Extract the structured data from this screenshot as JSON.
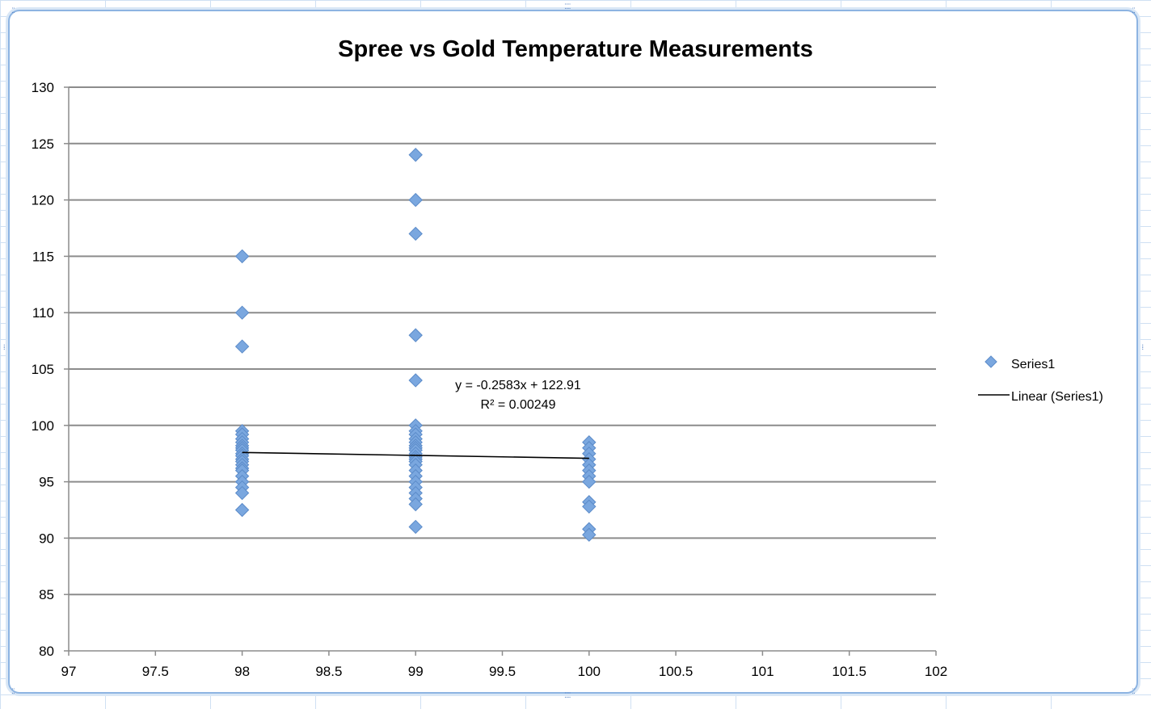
{
  "chart_data": {
    "type": "scatter",
    "title": "Spree vs Gold Temperature Measurements",
    "xlabel": "",
    "ylabel": "",
    "xlim": [
      97,
      102
    ],
    "ylim": [
      80,
      130
    ],
    "x_ticks": [
      "97",
      "97.5",
      "98",
      "98.5",
      "99",
      "99.5",
      "100",
      "100.5",
      "101",
      "101.5",
      "102"
    ],
    "y_ticks": [
      "80",
      "85",
      "90",
      "95",
      "100",
      "105",
      "110",
      "115",
      "120",
      "125",
      "130"
    ],
    "x_tick_values": [
      97,
      97.5,
      98,
      98.5,
      99,
      99.5,
      100,
      100.5,
      101,
      101.5,
      102
    ],
    "y_tick_values": [
      80,
      85,
      90,
      95,
      100,
      105,
      110,
      115,
      120,
      125,
      130
    ],
    "grid": "horizontal",
    "legend_position": "right",
    "series": [
      {
        "name": "Series1",
        "color": "#7aa7df",
        "marker": "diamond",
        "points": [
          [
            98,
            115
          ],
          [
            98,
            110
          ],
          [
            98,
            107
          ],
          [
            98,
            99.5
          ],
          [
            98,
            99.2
          ],
          [
            98,
            98.8
          ],
          [
            98,
            98.5
          ],
          [
            98,
            98.2
          ],
          [
            98,
            98.0
          ],
          [
            98,
            97.8
          ],
          [
            98,
            97.5
          ],
          [
            98,
            97.3
          ],
          [
            98,
            97.0
          ],
          [
            98,
            96.8
          ],
          [
            98,
            96.5
          ],
          [
            98,
            96.2
          ],
          [
            98,
            96.0
          ],
          [
            98,
            95.5
          ],
          [
            98,
            95.0
          ],
          [
            98,
            94.5
          ],
          [
            98,
            94.0
          ],
          [
            98,
            92.5
          ],
          [
            99,
            124
          ],
          [
            99,
            120
          ],
          [
            99,
            117
          ],
          [
            99,
            108
          ],
          [
            99,
            104
          ],
          [
            99,
            100
          ],
          [
            99,
            99.5
          ],
          [
            99,
            99.2
          ],
          [
            99,
            98.8
          ],
          [
            99,
            98.5
          ],
          [
            99,
            98.2
          ],
          [
            99,
            98.0
          ],
          [
            99,
            97.8
          ],
          [
            99,
            97.5
          ],
          [
            99,
            97.2
          ],
          [
            99,
            97.0
          ],
          [
            99,
            96.8
          ],
          [
            99,
            96.5
          ],
          [
            99,
            96.0
          ],
          [
            99,
            95.5
          ],
          [
            99,
            95.0
          ],
          [
            99,
            94.5
          ],
          [
            99,
            94.0
          ],
          [
            99,
            93.5
          ],
          [
            99,
            93.0
          ],
          [
            99,
            91.0
          ],
          [
            100,
            98.5
          ],
          [
            100,
            98.0
          ],
          [
            100,
            97.5
          ],
          [
            100,
            97.0
          ],
          [
            100,
            96.5
          ],
          [
            100,
            96.0
          ],
          [
            100,
            95.5
          ],
          [
            100,
            95.0
          ],
          [
            100,
            93.2
          ],
          [
            100,
            92.8
          ],
          [
            100,
            90.8
          ],
          [
            100,
            90.3
          ]
        ]
      }
    ],
    "trendline": {
      "name": "Linear (Series1)",
      "type": "linear",
      "slope": -0.2583,
      "intercept": 122.91,
      "x_range": [
        98,
        100
      ],
      "color": "#000000",
      "equation_label": "y = -0.2583x + 122.91",
      "r2_label": "R² = 0.00249"
    }
  }
}
